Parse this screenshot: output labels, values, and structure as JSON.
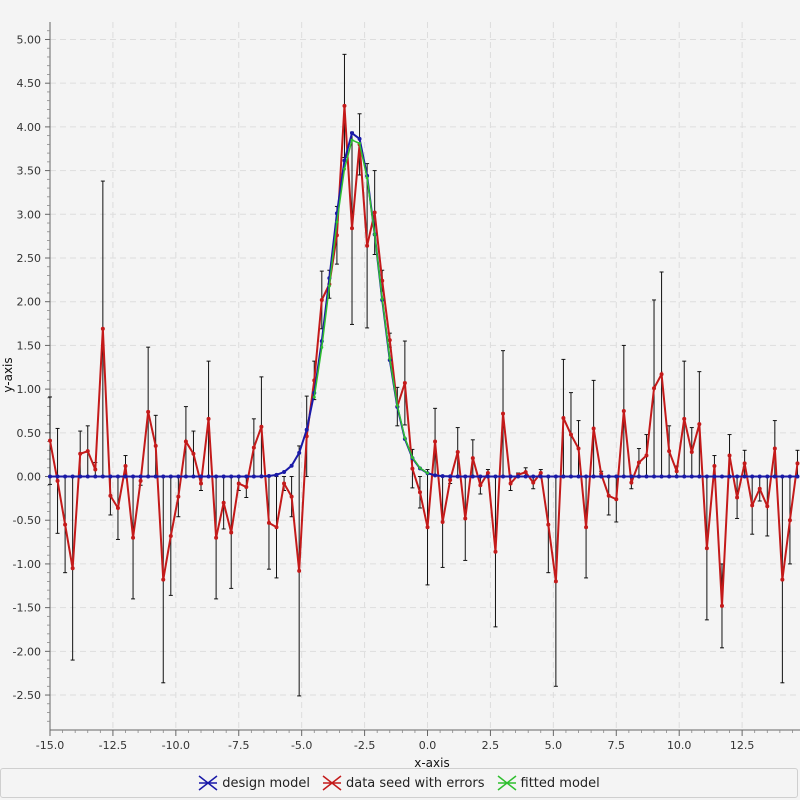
{
  "chart_data": {
    "type": "line",
    "xlabel": "x-axis",
    "ylabel": "y-axis",
    "xlim": [
      -15,
      14.8
    ],
    "ylim": [
      -2.9,
      5.2
    ],
    "x_ticks": [
      -15.0,
      -12.5,
      -10.0,
      -7.5,
      -5.0,
      -2.5,
      0.0,
      2.5,
      5.0,
      7.5,
      10.0,
      12.5
    ],
    "x_tick_labels": [
      "-15.0",
      "-12.5",
      "-10.0",
      "-7.5",
      "-5.0",
      "-2.5",
      "0.0",
      "2.5",
      "5.0",
      "7.5",
      "10.0",
      "12.5"
    ],
    "y_ticks": [
      -2.5,
      -2.0,
      -1.5,
      -1.0,
      -0.5,
      0.0,
      0.5,
      1.0,
      1.5,
      2.0,
      2.5,
      3.0,
      3.5,
      4.0,
      4.5,
      5.0
    ],
    "y_tick_labels": [
      "-2.50",
      "-2.00",
      "-1.50",
      "-1.00",
      "-0.50",
      "0.00",
      "0.50",
      "1.00",
      "1.50",
      "2.00",
      "2.50",
      "3.00",
      "3.50",
      "4.00",
      "4.50",
      "5.00"
    ],
    "grid": true,
    "legend_position": "bottom",
    "series": [
      {
        "name": "design model",
        "color": "#1a1aa8",
        "model": "gaussian",
        "amplitude": 3.95,
        "mean": -2.9,
        "sigma": 0.95,
        "x_start": -15.0,
        "x_step": 0.3,
        "count": 100
      },
      {
        "name": "data seed with errors",
        "color": "#c41a1a",
        "error_color": "#111111",
        "x_start": -15.0,
        "x_step": 0.3,
        "values": [
          0.41,
          -0.05,
          -0.55,
          -1.05,
          0.26,
          0.29,
          0.08,
          1.69,
          -0.22,
          -0.36,
          0.12,
          -0.7,
          -0.05,
          0.74,
          0.35,
          -1.18,
          -0.68,
          -0.23,
          0.4,
          0.26,
          -0.08,
          0.66,
          -0.7,
          -0.3,
          -0.64,
          -0.08,
          -0.12,
          0.33,
          0.57,
          -0.53,
          -0.58,
          -0.08,
          -0.23,
          -1.08,
          0.46,
          1.1,
          2.02,
          2.2,
          2.76,
          4.24,
          2.84,
          3.8,
          2.64,
          3.02,
          2.24,
          1.56,
          0.8,
          1.07,
          0.09,
          -0.18,
          -0.58,
          0.4,
          -0.52,
          -0.04,
          0.28,
          -0.48,
          0.21,
          -0.1,
          0.04,
          -0.86,
          0.72,
          -0.08,
          0.02,
          0.05,
          -0.07,
          0.04,
          -0.55,
          -1.2,
          0.67,
          0.48,
          0.32,
          -0.58,
          0.55,
          0.03,
          -0.22,
          -0.26,
          0.75,
          -0.07,
          0.16,
          0.24,
          1.01,
          1.17,
          0.29,
          0.06,
          0.66,
          0.28,
          0.6,
          -0.82,
          0.12,
          -1.48,
          0.24,
          -0.24,
          0.15,
          -0.33,
          -0.14,
          -0.34,
          0.32,
          -1.18,
          -0.5,
          0.15
        ],
        "errors": [
          0.5,
          0.6,
          0.55,
          1.05,
          0.26,
          0.29,
          0.08,
          1.69,
          0.22,
          0.36,
          0.12,
          0.7,
          0.05,
          0.74,
          0.35,
          1.18,
          0.68,
          0.23,
          0.4,
          0.26,
          0.08,
          0.66,
          0.7,
          0.3,
          0.64,
          0.08,
          0.12,
          0.33,
          0.57,
          0.53,
          0.58,
          0.08,
          0.23,
          1.43,
          0.46,
          0.22,
          0.33,
          0.16,
          0.33,
          0.59,
          1.1,
          0.35,
          0.94,
          0.48,
          0.12,
          0.08,
          0.22,
          0.48,
          0.22,
          0.18,
          0.66,
          0.38,
          0.52,
          0.04,
          0.28,
          0.48,
          0.21,
          0.1,
          0.04,
          0.86,
          0.72,
          0.08,
          0.02,
          0.05,
          0.07,
          0.04,
          0.55,
          1.2,
          0.67,
          0.48,
          0.32,
          0.58,
          0.55,
          0.03,
          0.22,
          0.26,
          0.75,
          0.07,
          0.16,
          0.24,
          1.01,
          1.17,
          0.29,
          0.06,
          0.66,
          0.28,
          0.6,
          0.82,
          0.12,
          0.48,
          0.24,
          0.24,
          0.15,
          0.33,
          0.14,
          0.34,
          0.32,
          1.18,
          0.5,
          0.15
        ]
      },
      {
        "name": "fitted model",
        "color": "#2fbf2f",
        "model": "gaussian",
        "amplitude": 3.88,
        "mean": -2.88,
        "sigma": 0.95,
        "x_start": -4.5,
        "x_step": 0.3,
        "count": 16
      }
    ]
  },
  "legend": {
    "items": [
      {
        "label": "design model",
        "color": "#1a1aa8"
      },
      {
        "label": "data seed with errors",
        "color": "#c41a1a"
      },
      {
        "label": "fitted model",
        "color": "#2fbf2f"
      }
    ]
  }
}
